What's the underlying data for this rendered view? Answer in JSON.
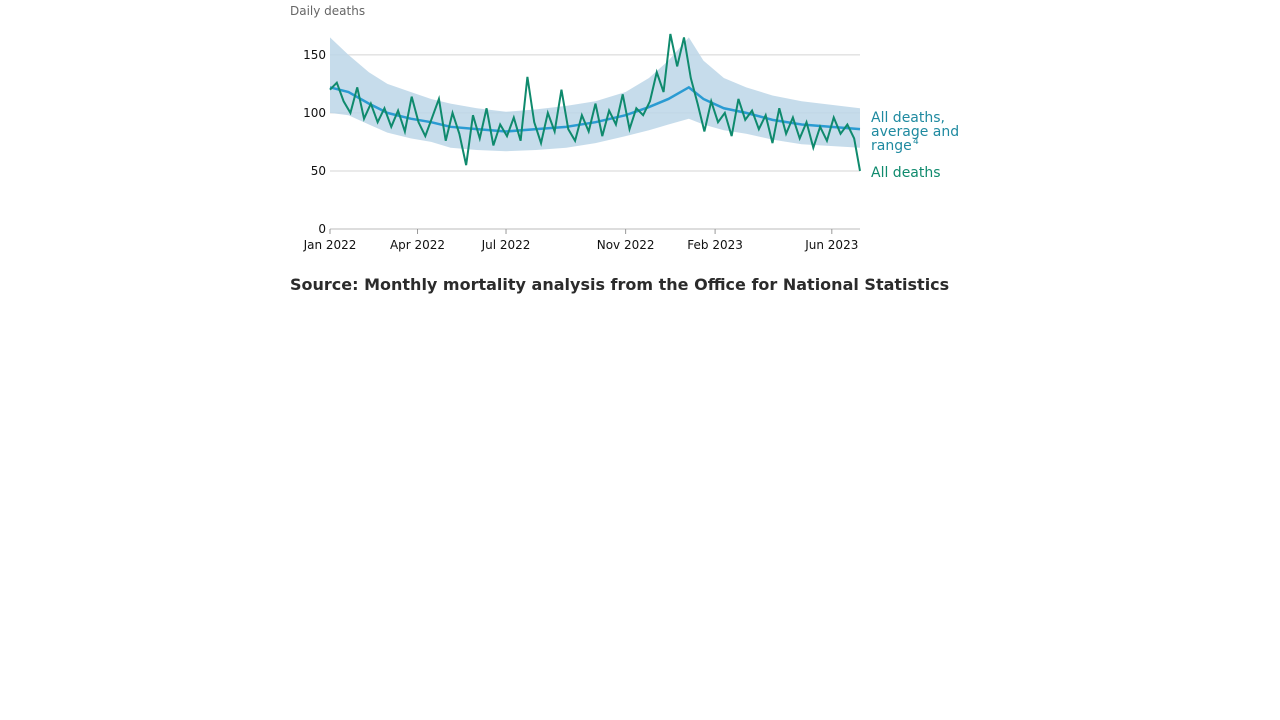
{
  "chart_data": {
    "type": "line",
    "ylabel": "Daily deaths",
    "ylim": [
      0,
      180
    ],
    "yticks": [
      0,
      50,
      100,
      150
    ],
    "xlim": [
      "2022-01-01",
      "2023-06-30"
    ],
    "xticks": [
      {
        "date": "2022-01-01",
        "label": "Jan 2022"
      },
      {
        "date": "2022-04-01",
        "label": "Apr 2022"
      },
      {
        "date": "2022-07-01",
        "label": "Jul 2022"
      },
      {
        "date": "2022-11-01",
        "label": "Nov 2022"
      },
      {
        "date": "2023-02-01",
        "label": "Feb 2023"
      },
      {
        "date": "2023-06-01",
        "label": "Jun 2023"
      }
    ],
    "grid": true,
    "series": [
      {
        "name": "All deaths, average and range",
        "name_suffix": "4",
        "kind": "average_with_range",
        "color": "#2a9bd2",
        "range_color": "#bcd6e8",
        "points": [
          {
            "x": "2022-01-01",
            "y": 122,
            "lo": 100,
            "hi": 165
          },
          {
            "x": "2022-01-20",
            "y": 118,
            "lo": 98,
            "hi": 150
          },
          {
            "x": "2022-02-10",
            "y": 108,
            "lo": 90,
            "hi": 135
          },
          {
            "x": "2022-03-01",
            "y": 100,
            "lo": 83,
            "hi": 125
          },
          {
            "x": "2022-03-25",
            "y": 95,
            "lo": 78,
            "hi": 118
          },
          {
            "x": "2022-04-15",
            "y": 92,
            "lo": 75,
            "hi": 112
          },
          {
            "x": "2022-05-05",
            "y": 88,
            "lo": 70,
            "hi": 108
          },
          {
            "x": "2022-06-01",
            "y": 86,
            "lo": 68,
            "hi": 104
          },
          {
            "x": "2022-07-01",
            "y": 84,
            "lo": 67,
            "hi": 101
          },
          {
            "x": "2022-08-01",
            "y": 86,
            "lo": 68,
            "hi": 103
          },
          {
            "x": "2022-09-01",
            "y": 88,
            "lo": 70,
            "hi": 106
          },
          {
            "x": "2022-10-01",
            "y": 92,
            "lo": 74,
            "hi": 110
          },
          {
            "x": "2022-11-01",
            "y": 98,
            "lo": 80,
            "hi": 118
          },
          {
            "x": "2022-11-25",
            "y": 105,
            "lo": 85,
            "hi": 130
          },
          {
            "x": "2022-12-15",
            "y": 112,
            "lo": 90,
            "hi": 145
          },
          {
            "x": "2023-01-05",
            "y": 122,
            "lo": 95,
            "hi": 165
          },
          {
            "x": "2023-01-20",
            "y": 112,
            "lo": 90,
            "hi": 145
          },
          {
            "x": "2023-02-10",
            "y": 104,
            "lo": 85,
            "hi": 130
          },
          {
            "x": "2023-03-05",
            "y": 100,
            "lo": 82,
            "hi": 122
          },
          {
            "x": "2023-04-01",
            "y": 94,
            "lo": 77,
            "hi": 115
          },
          {
            "x": "2023-05-01",
            "y": 90,
            "lo": 73,
            "hi": 110
          },
          {
            "x": "2023-06-30",
            "y": 86,
            "lo": 70,
            "hi": 104
          }
        ]
      },
      {
        "name": "All deaths",
        "kind": "daily",
        "color": "#0f8a6d",
        "points": [
          {
            "x": "2022-01-01",
            "y": 120
          },
          {
            "x": "2022-01-08",
            "y": 126
          },
          {
            "x": "2022-01-15",
            "y": 110
          },
          {
            "x": "2022-01-22",
            "y": 100
          },
          {
            "x": "2022-01-29",
            "y": 122
          },
          {
            "x": "2022-02-05",
            "y": 95
          },
          {
            "x": "2022-02-12",
            "y": 108
          },
          {
            "x": "2022-02-19",
            "y": 92
          },
          {
            "x": "2022-02-26",
            "y": 104
          },
          {
            "x": "2022-03-05",
            "y": 88
          },
          {
            "x": "2022-03-12",
            "y": 102
          },
          {
            "x": "2022-03-19",
            "y": 84
          },
          {
            "x": "2022-03-26",
            "y": 114
          },
          {
            "x": "2022-04-02",
            "y": 92
          },
          {
            "x": "2022-04-09",
            "y": 80
          },
          {
            "x": "2022-04-16",
            "y": 96
          },
          {
            "x": "2022-04-23",
            "y": 112
          },
          {
            "x": "2022-04-30",
            "y": 76
          },
          {
            "x": "2022-05-07",
            "y": 100
          },
          {
            "x": "2022-05-14",
            "y": 82
          },
          {
            "x": "2022-05-21",
            "y": 55
          },
          {
            "x": "2022-05-28",
            "y": 98
          },
          {
            "x": "2022-06-04",
            "y": 78
          },
          {
            "x": "2022-06-11",
            "y": 104
          },
          {
            "x": "2022-06-18",
            "y": 72
          },
          {
            "x": "2022-06-25",
            "y": 90
          },
          {
            "x": "2022-07-02",
            "y": 80
          },
          {
            "x": "2022-07-09",
            "y": 96
          },
          {
            "x": "2022-07-16",
            "y": 76
          },
          {
            "x": "2022-07-23",
            "y": 131
          },
          {
            "x": "2022-07-30",
            "y": 92
          },
          {
            "x": "2022-08-06",
            "y": 74
          },
          {
            "x": "2022-08-13",
            "y": 100
          },
          {
            "x": "2022-08-20",
            "y": 84
          },
          {
            "x": "2022-08-27",
            "y": 120
          },
          {
            "x": "2022-09-03",
            "y": 86
          },
          {
            "x": "2022-09-10",
            "y": 76
          },
          {
            "x": "2022-09-17",
            "y": 98
          },
          {
            "x": "2022-09-24",
            "y": 84
          },
          {
            "x": "2022-10-01",
            "y": 108
          },
          {
            "x": "2022-10-08",
            "y": 80
          },
          {
            "x": "2022-10-15",
            "y": 102
          },
          {
            "x": "2022-10-22",
            "y": 90
          },
          {
            "x": "2022-10-29",
            "y": 116
          },
          {
            "x": "2022-11-05",
            "y": 86
          },
          {
            "x": "2022-11-12",
            "y": 104
          },
          {
            "x": "2022-11-19",
            "y": 98
          },
          {
            "x": "2022-11-26",
            "y": 110
          },
          {
            "x": "2022-12-03",
            "y": 135
          },
          {
            "x": "2022-12-10",
            "y": 118
          },
          {
            "x": "2022-12-17",
            "y": 168
          },
          {
            "x": "2022-12-24",
            "y": 140
          },
          {
            "x": "2022-12-31",
            "y": 165
          },
          {
            "x": "2023-01-07",
            "y": 130
          },
          {
            "x": "2023-01-14",
            "y": 108
          },
          {
            "x": "2023-01-21",
            "y": 84
          },
          {
            "x": "2023-01-28",
            "y": 110
          },
          {
            "x": "2023-02-04",
            "y": 92
          },
          {
            "x": "2023-02-11",
            "y": 100
          },
          {
            "x": "2023-02-18",
            "y": 80
          },
          {
            "x": "2023-02-25",
            "y": 112
          },
          {
            "x": "2023-03-04",
            "y": 94
          },
          {
            "x": "2023-03-11",
            "y": 102
          },
          {
            "x": "2023-03-18",
            "y": 86
          },
          {
            "x": "2023-03-25",
            "y": 98
          },
          {
            "x": "2023-04-01",
            "y": 74
          },
          {
            "x": "2023-04-08",
            "y": 104
          },
          {
            "x": "2023-04-15",
            "y": 82
          },
          {
            "x": "2023-04-22",
            "y": 96
          },
          {
            "x": "2023-04-29",
            "y": 78
          },
          {
            "x": "2023-05-06",
            "y": 92
          },
          {
            "x": "2023-05-13",
            "y": 70
          },
          {
            "x": "2023-05-20",
            "y": 88
          },
          {
            "x": "2023-05-27",
            "y": 76
          },
          {
            "x": "2023-06-03",
            "y": 96
          },
          {
            "x": "2023-06-10",
            "y": 82
          },
          {
            "x": "2023-06-17",
            "y": 90
          },
          {
            "x": "2023-06-24",
            "y": 78
          },
          {
            "x": "2023-06-30",
            "y": 50
          }
        ]
      }
    ]
  },
  "source": "Source: Monthly mortality analysis from the Office for National Statistics"
}
